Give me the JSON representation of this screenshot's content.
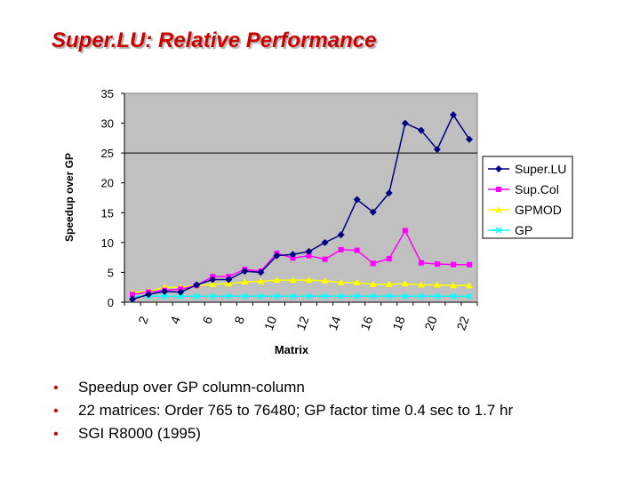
{
  "slide": {
    "title": "Super.LU:  Relative Performance",
    "bullets": [
      "Speedup over GP column-column",
      "22 matrices:  Order 765 to 76480; GP factor time 0.4 sec to 1.7 hr",
      "SGI R8000 (1995)"
    ],
    "bullet_color": "#cc0000",
    "title_color": "#cc0000"
  },
  "chart_data": {
    "type": "line",
    "title": "",
    "xlabel": "Matrix",
    "ylabel": "Speedup over GP",
    "ylim": [
      0,
      35
    ],
    "yticks": [
      0,
      5,
      10,
      15,
      20,
      25,
      30,
      35
    ],
    "grid": false,
    "reference_line_y": 25,
    "plot_background": "#c0c0c0",
    "legend_placement": "right",
    "x": [
      1,
      2,
      3,
      4,
      5,
      6,
      7,
      8,
      9,
      10,
      11,
      12,
      13,
      14,
      15,
      16,
      17,
      18,
      19,
      20,
      21,
      22
    ],
    "xtick_labels": [
      "2",
      "4",
      "6",
      "8",
      "10",
      "12",
      "14",
      "16",
      "18",
      "20",
      "22"
    ],
    "xtick_positions": [
      2,
      4,
      6,
      8,
      10,
      12,
      14,
      16,
      18,
      20,
      22
    ],
    "series": [
      {
        "name": "Super.LU",
        "color": "#000080",
        "marker": "diamond",
        "values": [
          0.5,
          1.3,
          1.8,
          1.7,
          2.9,
          3.8,
          3.8,
          5.2,
          5.0,
          7.8,
          8.0,
          8.5,
          10.0,
          11.3,
          17.2,
          15.1,
          18.3,
          30.0,
          28.8,
          25.6,
          31.4,
          27.3
        ]
      },
      {
        "name": "Sup.Col",
        "color": "#ff00ff",
        "marker": "square",
        "values": [
          1.3,
          1.7,
          2.0,
          2.2,
          2.8,
          4.3,
          4.3,
          5.5,
          5.2,
          8.2,
          7.4,
          7.8,
          7.2,
          8.8,
          8.7,
          6.5,
          7.3,
          12.0,
          6.6,
          6.4,
          6.3,
          6.3
        ]
      },
      {
        "name": "GPMOD",
        "color": "#ffff00",
        "marker": "triangle",
        "values": [
          1.6,
          1.8,
          2.5,
          2.5,
          2.8,
          3.0,
          3.1,
          3.4,
          3.5,
          3.7,
          3.7,
          3.7,
          3.6,
          3.3,
          3.3,
          3.0,
          3.0,
          3.1,
          2.9,
          2.9,
          2.8,
          2.8
        ]
      },
      {
        "name": "GP",
        "color": "#00ffff",
        "marker": "x",
        "values": [
          1,
          1,
          1,
          1,
          1,
          1,
          1,
          1,
          1,
          1,
          1,
          1,
          1,
          1,
          1,
          1,
          1,
          1,
          1,
          1,
          1,
          1
        ]
      }
    ]
  }
}
